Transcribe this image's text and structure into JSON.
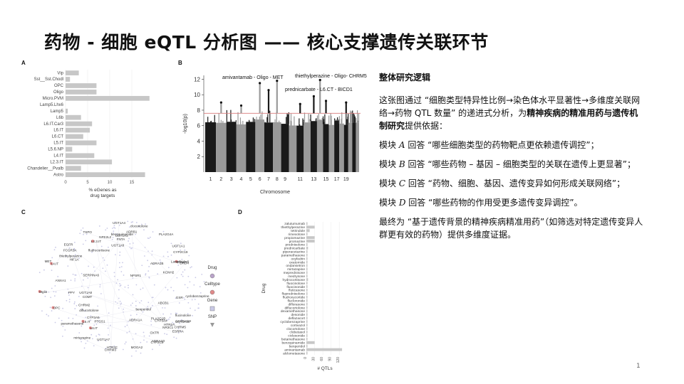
{
  "slide": {
    "title": "药物 - 细胞 eQTL 分析图 —— 核心支撑遗传关联环节",
    "page_number": "1"
  },
  "panel_labels": {
    "a": "A",
    "b": "B",
    "c": "C",
    "d": "D"
  },
  "chart_data": [
    {
      "type": "bar",
      "orientation": "horizontal",
      "categories": [
        "Vip",
        "Sst__Sst.Chodl",
        "OPC",
        "Oligo",
        "Micro.PVM",
        "Lamp5.Lhx6",
        "Lamp5",
        "L6b",
        "L6.IT.Car3",
        "L6.IT",
        "L6.CT",
        "L5.IT",
        "L5.6.NP",
        "L4.IT",
        "L2.3.IT",
        "Chandelier__Pvalb",
        "Astro"
      ],
      "values": [
        3,
        1,
        7,
        7,
        19,
        0,
        0.5,
        3.5,
        6,
        5.5,
        4,
        7,
        1.5,
        6.5,
        10.5,
        3.5,
        18
      ],
      "xlabel": "% eGenes as drug targets",
      "xticks": [
        0,
        5,
        10,
        15
      ],
      "xlim": [
        0,
        20
      ],
      "color": "#c7c7c7"
    },
    {
      "type": "scatter",
      "subtype": "manhattan",
      "xlabel": "Chromosome",
      "ylabel": "-log10(p)",
      "yticks": [
        2,
        4,
        6,
        8,
        10,
        12
      ],
      "ylim": [
        0,
        12.5
      ],
      "xticks": [
        "1",
        "2",
        "3",
        "4",
        "5",
        "6",
        "7",
        "8",
        "9",
        "11",
        "13",
        "15",
        "17",
        "19"
      ],
      "threshold": 7.6,
      "annotations": [
        "amivantamab - Oligo - MET",
        "thiethylperazine - Oligo- CHRM5",
        "prednicarbate - L6.CT - BICD1"
      ]
    },
    {
      "type": "bar",
      "orientation": "horizontal",
      "categories": [
        "zalutumumab",
        "thiethylperazine",
        "tetrindole",
        "rimexolone",
        "propiomazine",
        "promazine",
        "prednisolone",
        "prednicarbate",
        "piperacetazine",
        "paramethasone",
        "oxyfedrin",
        "oxatomide",
        "ondansetron",
        "mirtazapine",
        "meprednisone",
        "medrysone",
        "hydrocortisone",
        "fluocinolone",
        "fluocinonide",
        "fluticasone",
        "fluprednisolone",
        "fludroxycortide",
        "flucloronide",
        "diflorasone",
        "diflucortolone",
        "dexamethasone",
        "desonide",
        "deflazacort",
        "cyclobenzaprine",
        "cortivazol",
        "clocortolone",
        "clobetasol",
        "ciclesonide",
        "betamethasone",
        "benzquinamide",
        "benperidol",
        "amivantamab",
        "alclometasone"
      ],
      "values": [
        4,
        30,
        12,
        4,
        30,
        30,
        4,
        6,
        4,
        4,
        4,
        4,
        4,
        4,
        4,
        4,
        6,
        4,
        4,
        4,
        4,
        4,
        4,
        4,
        4,
        4,
        4,
        4,
        4,
        4,
        4,
        4,
        4,
        4,
        30,
        4,
        130,
        4
      ],
      "ylabel": "Drug",
      "xlabel": "# QTLs",
      "xticks": [
        0,
        30,
        60,
        90,
        120
      ],
      "xlim": [
        0,
        135
      ],
      "color": "#c7c7c7"
    }
  ],
  "network": {
    "nodes": [
      "COMT",
      "MOGA2",
      "Mglio",
      "CYP3A5",
      "FNTA",
      "SERPINA6",
      "UGT1A8",
      "CHRM3",
      "UGT1A10",
      "benperidol",
      "HTR2A",
      "paramethasone",
      "L2.3.IT",
      "EGFR",
      "ADRB1",
      "OPC",
      "ESRRA",
      "HIF1A",
      "UGT1A4",
      "KCNH2",
      "ADRA1A",
      "DRD4",
      "CHRM2",
      "ADRA1B",
      "PTGS1",
      "UGT1A1",
      "cyclobenzaprine",
      "HTR2C",
      "TSPO",
      "Lamp5.Lhx6",
      "CACNA1H",
      "CYP3A4",
      "HTR1A",
      "NR3C1",
      "L4.IT",
      "L5.IT",
      "NFE2L2",
      "L6.IT",
      "MET",
      "CYP2C9",
      "UGT1A3",
      "NPSR1",
      "PLA2G4A",
      "OXTR",
      "FCGR3A",
      "ABCB1",
      "CYP2C19",
      "PLA2G1B",
      "ADRA1D",
      "UGT1A7",
      "UGT1A6",
      "PPY",
      "fludrocortisone",
      "clocortolone",
      "mirtazapine",
      "diflucortolone",
      "thiethylperazine",
      "flucinolone",
      "benzquinamide",
      "ANXA1",
      "GSR",
      "CHRM5"
    ],
    "legend": [
      "Drug",
      "Celltype",
      "Gene",
      "SNP"
    ]
  },
  "text_block": {
    "heading": "整体研究逻辑",
    "intro_before": "这张图通过 “细胞类型特异性比例→染色体水平显著性→多维度关联网络→药物 QTL 数量” 的递进式分析，为",
    "intro_bold": "精神疾病的精准用药与遗传机制研究",
    "intro_after": "提供依据：",
    "items": [
      {
        "prefix": "模块",
        "letter": "A",
        "text": "回答 “哪些细胞类型的药物靶点更依赖遗传调控”；"
      },
      {
        "prefix": "模块",
        "letter": "B",
        "text": "回答 “哪些药物 – 基因 – 细胞类型的关联在遗传上更显著”；"
      },
      {
        "prefix": "模块",
        "letter": "C",
        "text": "回答 “药物、细胞、基因、遗传变异如何形成关联网络”；"
      },
      {
        "prefix": "模块",
        "letter": "D",
        "text": "回答 “哪些药物的作用受更多遗传变异调控”。"
      }
    ],
    "conclusion": "最终为 “基于遗传背景的精神疾病精准用药”（如筛选对特定遗传变异人群更有效的药物）提供多维度证据。"
  },
  "colors": {
    "bar": "#c7c7c7",
    "manhattan_dark": "#1a1a1a",
    "manhattan_light": "#9a9a9a",
    "threshold": "#d97a7a",
    "drug_node": "#b9a3c9",
    "celltype_node": "#e08a8a",
    "gene_node": "#c9c9e6"
  }
}
